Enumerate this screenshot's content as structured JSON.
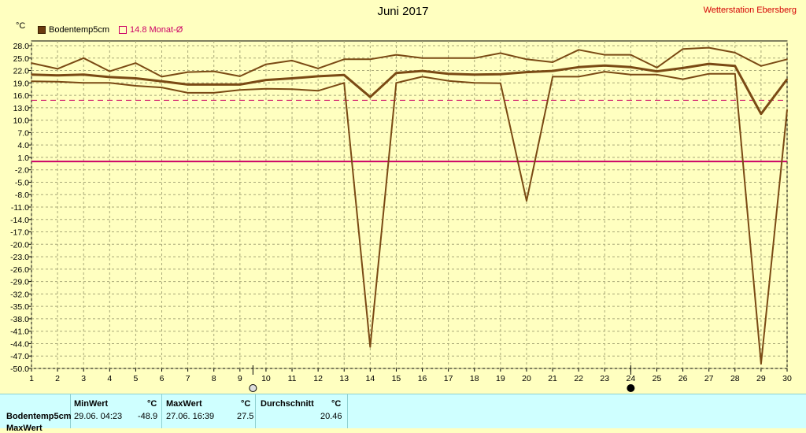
{
  "header": {
    "title": "Juni 2017",
    "station": "Wetterstation Ebersberg",
    "unit": "°C"
  },
  "legend": {
    "series_label": "Bodentemp5cm",
    "avg_label": "14.8 Monat-Ø"
  },
  "colors": {
    "background": "#ffffc0",
    "series": "#7a4a14",
    "avg_line": "#cc0066",
    "zero_line": "#cc0066",
    "grid": "#a8a878",
    "stats_bg": "#cfffff"
  },
  "stats": {
    "series_name": "Bodentemp5cm",
    "row2_label": "MaxWert",
    "min_header": "MinWert",
    "max_header": "MaxWert",
    "avg_header": "Durchschnitt",
    "unit": "°C",
    "min_time": "29.06.  04:23",
    "min_value": "-48.9",
    "max_time": "27.06.  16:39",
    "max_value": "27.5",
    "avg_value": "20.46"
  },
  "chart_data": {
    "type": "line",
    "title": "Juni 2017",
    "ylabel": "°C",
    "ylim": [
      -50,
      29.5
    ],
    "x": [
      1,
      2,
      3,
      4,
      5,
      6,
      7,
      8,
      9,
      10,
      11,
      12,
      13,
      14,
      15,
      16,
      17,
      18,
      19,
      20,
      21,
      22,
      23,
      24,
      25,
      26,
      27,
      28,
      29,
      30
    ],
    "y_ticks": [
      "28.0",
      "25.0",
      "22.0",
      "19.0",
      "16.0",
      "13.0",
      "10.0",
      "7.0",
      "4.0",
      "1.0",
      "-2.0",
      "-5.0",
      "-8.0",
      "-11.0",
      "-14.0",
      "-17.0",
      "-20.0",
      "-23.0",
      "-26.0",
      "-29.0",
      "-32.0",
      "-35.0",
      "-38.0",
      "-41.0",
      "-44.0",
      "-47.0",
      "-50.0"
    ],
    "x_ticks": [
      "1",
      "2",
      "3",
      "4",
      "5",
      "6",
      "7",
      "8",
      "9",
      "10",
      "11",
      "12",
      "13",
      "14",
      "15",
      "16",
      "17",
      "18",
      "19",
      "20",
      "21",
      "22",
      "23",
      "24",
      "25",
      "26",
      "27",
      "28",
      "29",
      "30"
    ],
    "series": [
      {
        "name": "max",
        "width": 2,
        "values": [
          23.8,
          22.4,
          25.0,
          21.8,
          23.8,
          20.5,
          21.6,
          21.8,
          20.6,
          23.5,
          24.4,
          22.5,
          24.7,
          24.7,
          25.8,
          25.0,
          25.0,
          25.0,
          26.2,
          24.7,
          24.0,
          27.0,
          25.8,
          25.8,
          22.7,
          27.2,
          27.5,
          26.3,
          23.1,
          24.7
        ]
      },
      {
        "name": "avg",
        "width": 3,
        "values": [
          21.0,
          20.8,
          21.0,
          20.4,
          20.1,
          19.4,
          18.6,
          18.6,
          18.6,
          19.7,
          20.1,
          20.6,
          20.9,
          15.6,
          21.4,
          21.9,
          21.2,
          21.0,
          21.1,
          21.6,
          21.9,
          22.8,
          23.2,
          22.8,
          21.8,
          22.6,
          23.6,
          23.1,
          11.5,
          19.9
        ]
      },
      {
        "name": "min",
        "width": 2,
        "values": [
          19.4,
          19.3,
          19.0,
          19.0,
          18.3,
          17.9,
          16.6,
          16.6,
          17.3,
          17.6,
          17.5,
          17.1,
          19.0,
          -44.8,
          19.0,
          20.5,
          19.5,
          19.0,
          18.9,
          -9.5,
          20.5,
          20.5,
          21.7,
          21.0,
          21.0,
          19.9,
          21.2,
          21.2,
          -48.9,
          12.5
        ]
      }
    ],
    "reference_lines": [
      {
        "label": "14.8 Monat-Ø",
        "value": 14.8,
        "style": "dashed"
      },
      {
        "label": "zero",
        "value": 0,
        "style": "solid"
      }
    ],
    "moon_markers": [
      {
        "day": 9.5,
        "phase": "full"
      },
      {
        "day": 24,
        "phase": "new"
      }
    ]
  }
}
